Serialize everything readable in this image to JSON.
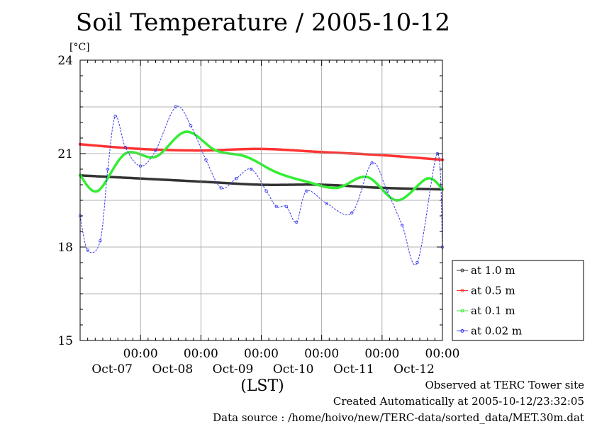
{
  "title": "Soil Temperature / 2005-10-12",
  "unit_label": "[°C]",
  "x_axis_label": "(LST)",
  "footer": {
    "observed": "Observed at TERC Tower site",
    "created": "Created Automatically at 2005-10-12/23:32:05",
    "source": "Data source : /home/hoivo/new/TERC-data/sorted_data/MET.30m.dat"
  },
  "chart_data": {
    "type": "line",
    "title": "Soil Temperature / 2005-10-12",
    "ylabel": "[°C]",
    "xlabel": "(LST)",
    "ylim": [
      15,
      24
    ],
    "yticks": [
      15,
      18,
      21,
      24
    ],
    "xlim": [
      "2005-10-07 00:00",
      "2005-10-13 00:00"
    ],
    "xticks": [
      {
        "time": "00:00",
        "date": "Oct-07"
      },
      {
        "time": "00:00",
        "date": "Oct-08"
      },
      {
        "time": "00:00",
        "date": "Oct-09"
      },
      {
        "time": "00:00",
        "date": "Oct-10"
      },
      {
        "time": "00:00",
        "date": "Oct-11"
      },
      {
        "time": "00:00",
        "date": "Oct-12"
      }
    ],
    "grid": true,
    "legend_position": "right",
    "series": [
      {
        "name": "at 1.0 m",
        "color": "#333333",
        "points": [
          [
            "10-07 00:00",
            20.3
          ],
          [
            "10-08 00:00",
            20.2
          ],
          [
            "10-09 00:00",
            20.1
          ],
          [
            "10-10 00:00",
            20.0
          ],
          [
            "10-11 00:00",
            20.0
          ],
          [
            "10-12 00:00",
            19.9
          ],
          [
            "10-13 00:00",
            19.85
          ]
        ]
      },
      {
        "name": "at 0.5 m",
        "color": "#ff3333",
        "points": [
          [
            "10-07 00:00",
            21.3
          ],
          [
            "10-08 00:00",
            21.15
          ],
          [
            "10-09 00:00",
            21.1
          ],
          [
            "10-10 00:00",
            21.15
          ],
          [
            "10-11 00:00",
            21.05
          ],
          [
            "10-12 00:00",
            20.95
          ],
          [
            "10-13 00:00",
            20.8
          ]
        ]
      },
      {
        "name": "at 0.1 m",
        "color": "#33ee33",
        "points": [
          [
            "10-07 00:00",
            20.3
          ],
          [
            "10-07 07:00",
            19.8
          ],
          [
            "10-07 18:00",
            21.0
          ],
          [
            "10-08 06:00",
            20.9
          ],
          [
            "10-08 18:00",
            21.7
          ],
          [
            "10-09 06:00",
            21.1
          ],
          [
            "10-09 18:00",
            20.9
          ],
          [
            "10-10 06:00",
            20.4
          ],
          [
            "10-10 18:00",
            20.1
          ],
          [
            "10-11 06:00",
            19.9
          ],
          [
            "10-11 18:00",
            20.25
          ],
          [
            "10-12 06:00",
            19.5
          ],
          [
            "10-12 18:00",
            20.2
          ],
          [
            "10-13 00:00",
            19.85
          ]
        ]
      },
      {
        "name": "at 0.02 m",
        "color": "#3333ee",
        "points": [
          [
            "10-07 00:00",
            19.0
          ],
          [
            "10-07 03:00",
            17.9
          ],
          [
            "10-07 08:00",
            18.2
          ],
          [
            "10-07 11:00",
            20.5
          ],
          [
            "10-07 14:00",
            22.2
          ],
          [
            "10-07 18:00",
            21.2
          ],
          [
            "10-08 00:00",
            20.6
          ],
          [
            "10-08 06:00",
            21.1
          ],
          [
            "10-08 14:00",
            22.5
          ],
          [
            "10-08 20:00",
            21.9
          ],
          [
            "10-09 02:00",
            20.8
          ],
          [
            "10-09 08:00",
            19.9
          ],
          [
            "10-09 14:00",
            20.2
          ],
          [
            "10-09 20:00",
            20.5
          ],
          [
            "10-10 02:00",
            19.8
          ],
          [
            "10-10 06:00",
            19.3
          ],
          [
            "10-10 10:00",
            19.3
          ],
          [
            "10-10 14:00",
            18.8
          ],
          [
            "10-10 18:00",
            19.8
          ],
          [
            "10-11 02:00",
            19.4
          ],
          [
            "10-11 12:00",
            19.1
          ],
          [
            "10-11 20:00",
            20.7
          ],
          [
            "10-12 02:00",
            19.8
          ],
          [
            "10-12 08:00",
            18.7
          ],
          [
            "10-12 14:00",
            17.5
          ],
          [
            "10-12 22:00",
            21.0
          ],
          [
            "10-13 00:00",
            18.0
          ]
        ]
      }
    ]
  },
  "legend": {
    "items": [
      {
        "label": "at 1.0 m",
        "color": "#333333"
      },
      {
        "label": "at 0.5 m",
        "color": "#ff3333"
      },
      {
        "label": "at 0.1 m",
        "color": "#33ee33"
      },
      {
        "label": "at 0.02 m",
        "color": "#3333ee"
      }
    ]
  }
}
